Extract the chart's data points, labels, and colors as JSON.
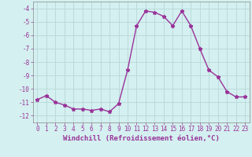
{
  "x": [
    0,
    1,
    2,
    3,
    4,
    5,
    6,
    7,
    8,
    9,
    10,
    11,
    12,
    13,
    14,
    15,
    16,
    17,
    18,
    19,
    20,
    21,
    22,
    23
  ],
  "y": [
    -10.8,
    -10.5,
    -11.0,
    -11.2,
    -11.5,
    -11.5,
    -11.6,
    -11.5,
    -11.7,
    -11.1,
    -8.6,
    -5.3,
    -4.2,
    -4.3,
    -4.6,
    -5.3,
    -4.2,
    -5.3,
    -7.0,
    -8.6,
    -9.1,
    -10.2,
    -10.6,
    -10.6
  ],
  "line_color": "#993399",
  "marker": "*",
  "marker_size": 3.5,
  "bg_color": "#d4f0f0",
  "grid_color": "#b8d8d8",
  "xlabel": "Windchill (Refroidissement éolien,°C)",
  "ylabel": "",
  "xlim": [
    -0.5,
    23.5
  ],
  "ylim": [
    -12.5,
    -3.5
  ],
  "yticks": [
    -12,
    -11,
    -10,
    -9,
    -8,
    -7,
    -6,
    -5,
    -4
  ],
  "xticks": [
    0,
    1,
    2,
    3,
    4,
    5,
    6,
    7,
    8,
    9,
    10,
    11,
    12,
    13,
    14,
    15,
    16,
    17,
    18,
    19,
    20,
    21,
    22,
    23
  ],
  "tick_fontsize": 5.5,
  "xlabel_fontsize": 6.5,
  "line_width": 1.0
}
